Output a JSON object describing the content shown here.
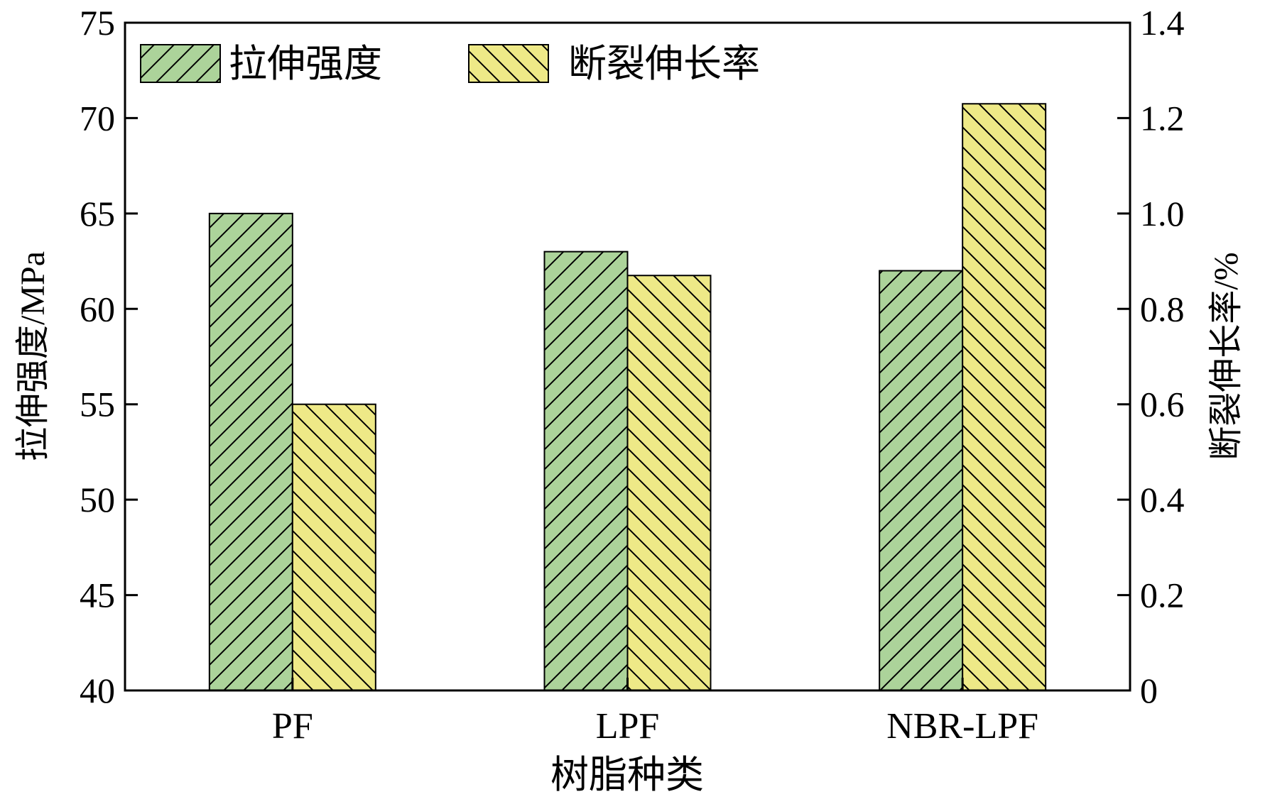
{
  "chart_data": {
    "type": "bar",
    "xlabel": "树脂种类",
    "categories": [
      "PF",
      "LPF",
      "NBR-LPF"
    ],
    "left_axis": {
      "label": "拉伸强度/MPa",
      "ylim": [
        40,
        75
      ],
      "ticks": [
        "40",
        "45",
        "50",
        "55",
        "60",
        "65",
        "70",
        "75"
      ]
    },
    "right_axis": {
      "label": "断裂伸长率/%",
      "ylim": [
        0,
        1.4
      ],
      "ticks": [
        "0",
        "0.2",
        "0.4",
        "0.6",
        "0.8",
        "1.0",
        "1.2",
        "1.4"
      ]
    },
    "series": [
      {
        "name": "拉伸强度",
        "axis": "left",
        "values": [
          65.0,
          63.0,
          62.0
        ],
        "color": "#acd39a",
        "hatch": "forward-diagonal"
      },
      {
        "name": "断裂伸长率",
        "axis": "right",
        "values": [
          0.6,
          0.87,
          1.23
        ],
        "color": "#eee987",
        "hatch": "back-diagonal"
      }
    ],
    "legend": "top-left",
    "grid": false
  }
}
